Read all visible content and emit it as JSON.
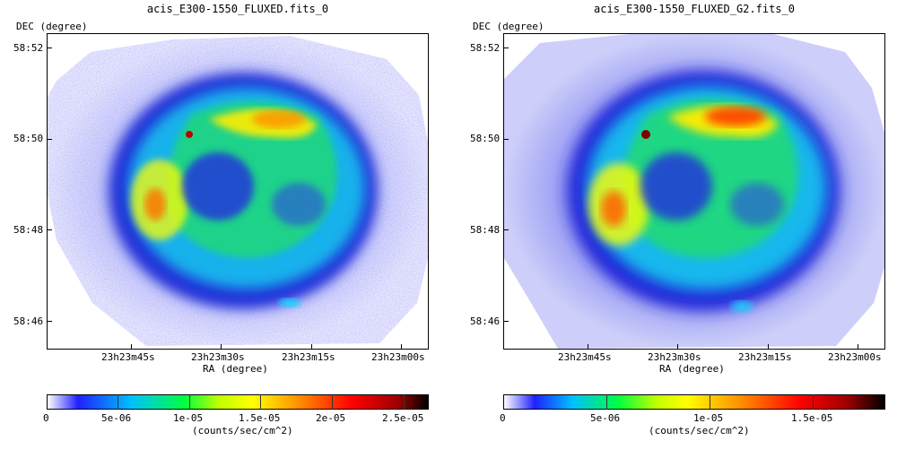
{
  "panels": [
    {
      "title": "acis_E300-1550_FLUXED.fits_0",
      "y_axis_label": "DEC (degree)",
      "x_axis_label": "RA (degree)",
      "y_ticks": [
        "58:52",
        "58:50",
        "58:48",
        "58:46"
      ],
      "x_ticks": [
        "23h23m45s",
        "23h23m30s",
        "23h23m15s",
        "23h23m00s"
      ],
      "colorbar": {
        "ticks": [
          "0",
          "5e-06",
          "1e-05",
          "1.5e-05",
          "2e-05",
          "2.5e-05"
        ],
        "units": "(counts/sec/cm^2)",
        "colormap": [
          "#ffffff",
          "#1010ff",
          "#00c8ff",
          "#00ff40",
          "#ffff00",
          "#ff8000",
          "#ff0000",
          "#800000",
          "#000000"
        ]
      }
    },
    {
      "title": "acis_E300-1550_FLUXED_G2.fits_0",
      "y_axis_label": "DEC (degree)",
      "x_axis_label": "RA (degree)",
      "y_ticks": [
        "58:52",
        "58:50",
        "58:48",
        "58:46"
      ],
      "x_ticks": [
        "23h23m45s",
        "23h23m30s",
        "23h23m15s",
        "23h23m00s"
      ],
      "colorbar": {
        "ticks": [
          "0",
          "5e-06",
          "1e-05",
          "1.5e-05"
        ],
        "units": "(counts/sec/cm^2)",
        "colormap": [
          "#ffffff",
          "#1010ff",
          "#00c8ff",
          "#00ff40",
          "#ffff00",
          "#ff8000",
          "#ff0000",
          "#800000",
          "#000000"
        ]
      }
    }
  ]
}
